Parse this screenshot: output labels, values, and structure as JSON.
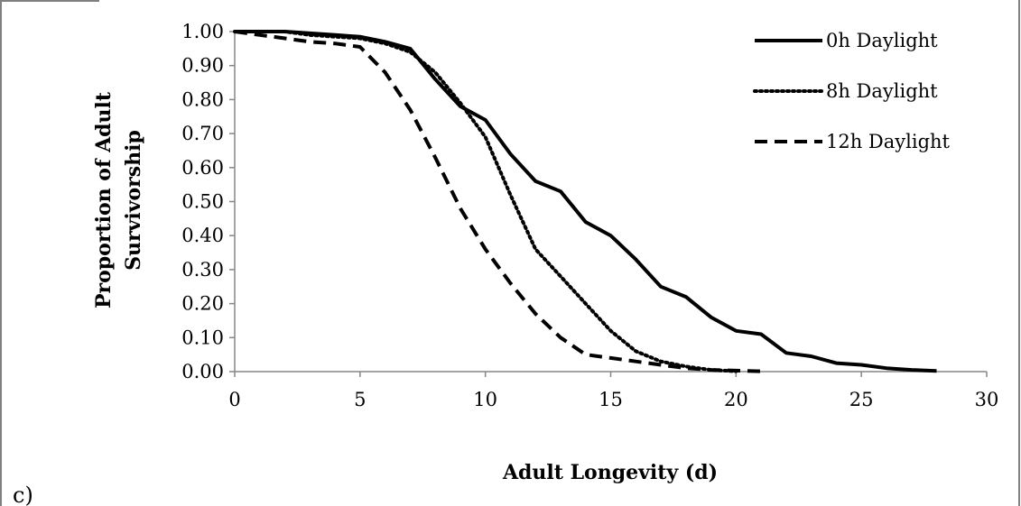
{
  "chart_data": {
    "type": "line",
    "title": "",
    "xlabel": "Adult Longevity (d)",
    "ylabel": "Proportion of Adult Survivorship",
    "ylabel_lines": [
      "Proportion of Adult",
      "Survivorship"
    ],
    "panel_label": "c)",
    "xlim": [
      0,
      30
    ],
    "ylim": [
      0,
      1
    ],
    "x_ticks": [
      0,
      5,
      10,
      15,
      20,
      25,
      30
    ],
    "x_tick_labels": [
      "0",
      "5",
      "10",
      "15",
      "20",
      "25",
      "30"
    ],
    "y_ticks": [
      0,
      0.1,
      0.2,
      0.3,
      0.4,
      0.5,
      0.6,
      0.7,
      0.8,
      0.9,
      1.0
    ],
    "y_tick_labels": [
      "0.00",
      "0.10",
      "0.20",
      "0.30",
      "0.40",
      "0.50",
      "0.60",
      "0.70",
      "0.80",
      "0.90",
      "1.00"
    ],
    "grid": false,
    "legend_position": "top-right",
    "series": [
      {
        "name": "0h Daylight",
        "style": "solid",
        "color": "#000000",
        "x": [
          0,
          1,
          2,
          3,
          4,
          5,
          6,
          7,
          8,
          9,
          10,
          11,
          12,
          13,
          14,
          15,
          16,
          17,
          18,
          19,
          20,
          21,
          22,
          23,
          24,
          25,
          26,
          27,
          28
        ],
        "y": [
          1.0,
          1.0,
          1.0,
          0.995,
          0.99,
          0.985,
          0.97,
          0.95,
          0.86,
          0.78,
          0.74,
          0.64,
          0.56,
          0.53,
          0.44,
          0.4,
          0.33,
          0.25,
          0.22,
          0.16,
          0.12,
          0.11,
          0.055,
          0.045,
          0.025,
          0.02,
          0.01,
          0.005,
          0.002
        ]
      },
      {
        "name": "8h Daylight",
        "style": "dotted",
        "color": "#000000",
        "x": [
          0,
          1,
          2,
          3,
          4,
          5,
          6,
          7,
          8,
          9,
          10,
          11,
          12,
          13,
          14,
          15,
          16,
          17,
          18,
          19,
          20
        ],
        "y": [
          1.0,
          1.0,
          1.0,
          0.99,
          0.985,
          0.98,
          0.965,
          0.94,
          0.88,
          0.79,
          0.69,
          0.52,
          0.36,
          0.28,
          0.2,
          0.12,
          0.06,
          0.03,
          0.015,
          0.005,
          0.001
        ]
      },
      {
        "name": "12h Daylight",
        "style": "dashed",
        "color": "#000000",
        "x": [
          0,
          1,
          2,
          3,
          4,
          5,
          6,
          7,
          8,
          9,
          10,
          11,
          12,
          13,
          14,
          15,
          16,
          17,
          18,
          19,
          20,
          21
        ],
        "y": [
          1.0,
          0.99,
          0.98,
          0.97,
          0.965,
          0.955,
          0.88,
          0.77,
          0.63,
          0.48,
          0.36,
          0.26,
          0.17,
          0.1,
          0.05,
          0.04,
          0.03,
          0.02,
          0.01,
          0.005,
          0.003,
          0.001
        ]
      }
    ]
  }
}
